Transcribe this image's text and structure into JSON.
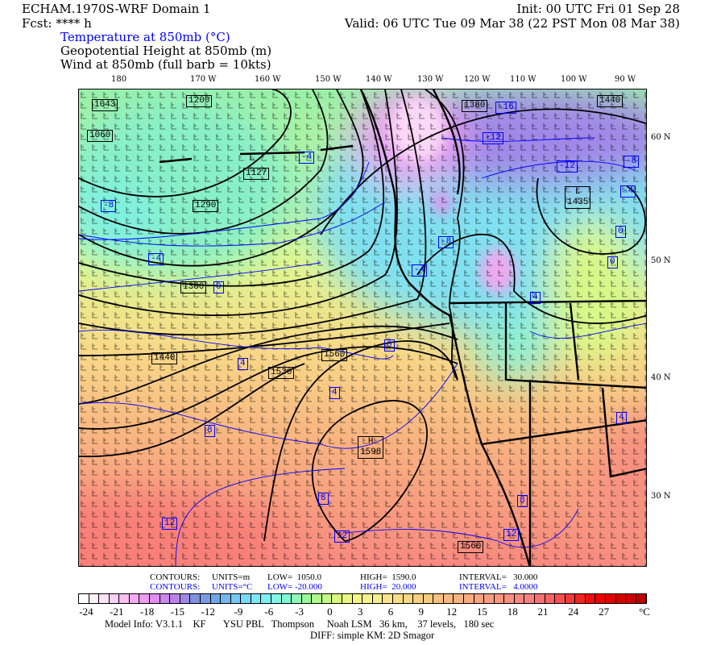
{
  "header": {
    "title": "ECHAM.1970S-WRF Domain 1",
    "init": "Init: 00 UTC Fri 01 Sep 28",
    "fcst": "Fcst: **** h",
    "valid": "Valid: 06 UTC Tue 09 Mar 38 (22 PST Mon 08 Mar 38)",
    "field1": "Temperature at 850mb (°C)",
    "field2": "Geopotential Height at 850mb (m)",
    "field3": "Wind at 850mb (full barb = 10kts)"
  },
  "map": {
    "lon_labels": [
      "180",
      "170 W",
      "160 W",
      "150 W",
      "140 W",
      "130 W",
      "120 W",
      "110 W",
      "100 W",
      "90 W"
    ],
    "lat_labels": [
      "60 N",
      "50 N",
      "40 N",
      "30 N"
    ],
    "height_labels": [
      "1043",
      "1060",
      "1200",
      "1127",
      "1290",
      "1380",
      "1440",
      "1560",
      "1530",
      "1440",
      "1598",
      "1560",
      "1380"
    ],
    "low_marks": [
      "L",
      "L"
    ],
    "high_mark": "H",
    "low_label_2": "1435",
    "temp_labels": [
      "-8",
      "-4",
      "0",
      "-4",
      "-16",
      "-12",
      "-12",
      "-8",
      "-4",
      "0",
      "0",
      "-8",
      "-4",
      "4",
      "0",
      "4",
      "4",
      "8",
      "8",
      "12",
      "12",
      "8",
      "12",
      "4"
    ]
  },
  "footer": {
    "contours_black": {
      "label": "CONTOURS:",
      "units": "UNITS=m",
      "low": "LOW=  1050.0",
      "high": "HIGH=  1590.0",
      "interval": "INTERVAL=   30.000"
    },
    "contours_blue": {
      "label": "CONTOURS:",
      "units": "UNITS=°C",
      "low": "LOW= -20.000",
      "high": "HIGH=  20.000",
      "interval": "INTERVAL=   4.0000"
    },
    "colorbar_labels": [
      "-24",
      "-21",
      "-18",
      "-15",
      "-12",
      "-9",
      "-6",
      "-3",
      "0",
      "3",
      "6",
      "9",
      "12",
      "15",
      "18",
      "21",
      "24",
      "27"
    ],
    "colorbar_unit": "°C",
    "colorbar_stops": [
      "#ffffff",
      "#fce0f8",
      "#f8b8f0",
      "#e890f0",
      "#c080e8",
      "#8090e0",
      "#70a8e8",
      "#78d0f8",
      "#80f0f8",
      "#80f8d8",
      "#98f898",
      "#c8f880",
      "#f0f880",
      "#f8f090",
      "#f8e088",
      "#f8d080",
      "#f8c080",
      "#f8b080",
      "#f8a080",
      "#f89080",
      "#f88080",
      "#f86060",
      "#f83030",
      "#f00000",
      "#d80000",
      "#c00000"
    ],
    "model_info": "Model Info: V3.1.1    KF       YSU PBL   Thompson     Noah LSM   36 km,    37 levels,   180 sec",
    "diff": "DIFF: simple KM: 2D Smagor"
  },
  "colors": {
    "temperature_contour": "#0000ff",
    "height_contour": "#000000"
  }
}
